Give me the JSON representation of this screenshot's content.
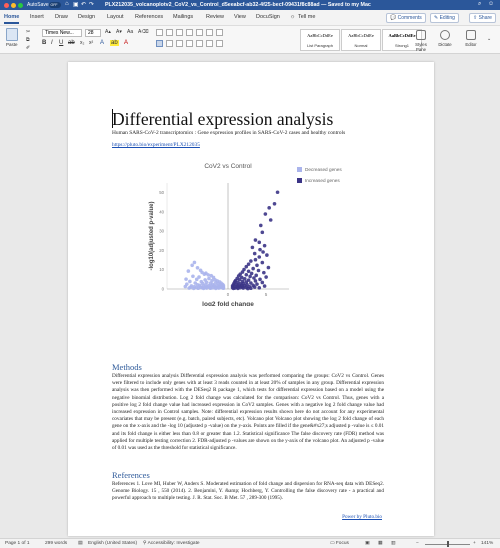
{
  "window": {
    "autosave_label": "AutoSave",
    "autosave_state": "OFF",
    "doc_title": "PLX212035_volcanoplotv2_CoV2_vs_Control_d5eeabcf-ab32-4f25-becf-09431f8c88ad — Saved to my Mac"
  },
  "ribbon_tabs": [
    "Home",
    "Insert",
    "Draw",
    "Design",
    "Layout",
    "References",
    "Mailings",
    "Review",
    "View",
    "DocuSign"
  ],
  "tell_me": "Tell me",
  "comments_label": "Comments",
  "editing_label": "Editing",
  "share_label": "Share",
  "ribbon": {
    "paste_label": "Paste",
    "font_name": "Times New...",
    "font_size": "28",
    "styles": [
      {
        "preview": "AaBbCcDdEe",
        "name": "List Paragraph"
      },
      {
        "preview": "AaBbCcDdEe",
        "name": "Normal"
      },
      {
        "preview": "AaBbCcDdEe",
        "name": "Strong1"
      }
    ],
    "styles_pane_label": "Styles Pane",
    "dictate_label": "Dictate",
    "editor_label": "Editor"
  },
  "document": {
    "title": "Differential expression analysis",
    "subtitle": "Human SARS-CoV-2 transcriptomics : Gene expression profiles in SARS-CoV-2 cases and healthy controls",
    "link": "https://pluto.bio/experiment/PLX212035",
    "methods_heading": "Methods",
    "methods_text": "Differential expression analysis   Differential expression analysis was performed comparing the groups:  CoV2 vs  Control. Genes were filtered to include only genes with at least 3 reads counted in at least 20% of samples in any group. Differential expression analysis was then performed with the DESeq2 R package 1, which tests for differential expression based on a model using the negative binomial distribution.  Log 2 fold change was calculated for the comparison:  CoV2  vs  Control. Thus, genes with a positive log 2 fold change value had increased expression in  CoV2  samples. Genes with a negative log 2 fold change value had increased expression in  Control  samples.  Note: differential expression results shown here do not account for any experimental covariates that may be present (e.g. batch, paired subjects, etc).   Volcano plot  Volcano plot showing the log 2  fold change of each gene on the x-axis and the  -log 10 (adjusted  p -value)  on the y-axis. Points are filled if the gene&#x27;s adjusted  p -value is ≤  0.01   and its fold change is either less than  0.8  or greater than  1.2.   Statistical significance  The false discovery rate (FDR) method was applied for multiple testing correction 2.  FDR-adjusted p -values  are shown on the y-axis of the volcano plot. An adjusted  p -value  of  0.01  was used as the threshold for statistical significance.",
    "references_heading": "References",
    "references_text": "References 1.  Love MI, Huber W, Anders S. Moderated estimation of fold change and dispersion for RNA-seq data with DESeq2.  Genome Biology.  15 , 550 (2014).  2.  Benjamini, Y. &amp; Hochberg, Y. Controlling the false discovery rate - a practical and powerful approach to multiple testing.  J. R. Stat. Soc. B Met.  57 , 289-300 (1995).",
    "powered_by": "Power by Pluto.bio"
  },
  "chart_data": {
    "type": "scatter",
    "title": "CoV2 vs Control",
    "xlabel": "log2 fold change",
    "ylabel": "-log10(adjusted p-value)",
    "xticks": [
      0,
      5
    ],
    "yticks": [
      0,
      10,
      20,
      30,
      40,
      50
    ],
    "xlim": [
      -8,
      8
    ],
    "ylim": [
      0,
      55
    ],
    "legend_position": "top-right",
    "series": [
      {
        "name": "Decreased genes",
        "color": "#aab4ec",
        "points": [
          [
            -4.4,
            13.8
          ],
          [
            -4.7,
            12.3
          ],
          [
            -4.0,
            11.0
          ],
          [
            -3.6,
            9.7
          ],
          [
            -5.2,
            9.3
          ],
          [
            -3.4,
            8.6
          ],
          [
            -2.9,
            8.2
          ],
          [
            -3.1,
            7.7
          ],
          [
            -2.6,
            7.3
          ],
          [
            -2.2,
            6.9
          ],
          [
            -4.6,
            6.6
          ],
          [
            -3.8,
            6.2
          ],
          [
            -1.9,
            6.0
          ],
          [
            -2.5,
            5.4
          ],
          [
            -5.5,
            5.1
          ],
          [
            -4.1,
            5.0
          ],
          [
            -1.7,
            4.8
          ],
          [
            -3.0,
            4.7
          ],
          [
            -2.1,
            4.3
          ],
          [
            -1.4,
            4.2
          ],
          [
            -5.0,
            3.9
          ],
          [
            -3.5,
            3.8
          ],
          [
            -1.1,
            3.7
          ],
          [
            -2.8,
            3.5
          ],
          [
            -1.6,
            3.3
          ],
          [
            -4.3,
            3.1
          ],
          [
            -0.9,
            3.0
          ],
          [
            -2.3,
            3.0
          ],
          [
            -3.3,
            2.8
          ],
          [
            -1.3,
            2.7
          ],
          [
            -5.4,
            2.5
          ],
          [
            -0.7,
            2.4
          ],
          [
            -2.0,
            2.4
          ],
          [
            -4.0,
            2.2
          ],
          [
            -2.9,
            2.1
          ],
          [
            -1.0,
            2.1
          ],
          [
            -3.7,
            1.9
          ],
          [
            -1.8,
            1.8
          ],
          [
            -0.6,
            1.8
          ],
          [
            -2.5,
            1.7
          ],
          [
            -4.8,
            1.6
          ],
          [
            -1.4,
            1.6
          ],
          [
            -3.2,
            1.5
          ],
          [
            -0.8,
            1.4
          ],
          [
            -2.2,
            1.4
          ],
          [
            -5.6,
            1.3
          ],
          [
            -4.4,
            1.2
          ],
          [
            -1.1,
            1.2
          ],
          [
            -2.7,
            1.1
          ],
          [
            -3.6,
            1.0
          ],
          [
            -0.6,
            1.0
          ],
          [
            -1.7,
            1.0
          ],
          [
            -4.9,
            0.9
          ],
          [
            -2.4,
            0.9
          ],
          [
            -3.0,
            0.8
          ],
          [
            -0.9,
            0.8
          ],
          [
            -4.1,
            0.7
          ],
          [
            -1.4,
            0.7
          ],
          [
            -2.0,
            0.6
          ],
          [
            -3.4,
            0.6
          ],
          [
            -0.7,
            0.6
          ],
          [
            -5.1,
            0.5
          ],
          [
            -2.8,
            0.5
          ],
          [
            -1.2,
            0.5
          ],
          [
            -3.9,
            0.4
          ],
          [
            -0.6,
            0.4
          ],
          [
            -2.3,
            0.4
          ],
          [
            -4.5,
            0.3
          ],
          [
            -1.6,
            0.3
          ],
          [
            -3.2,
            0.3
          ]
        ]
      },
      {
        "name": "Increased genes",
        "color": "#3b3486",
        "points": [
          [
            6.5,
            50.2
          ],
          [
            6.1,
            44.2
          ],
          [
            5.4,
            42.1
          ],
          [
            4.9,
            38.9
          ],
          [
            5.6,
            35.8
          ],
          [
            4.3,
            33.0
          ],
          [
            4.5,
            29.4
          ],
          [
            3.6,
            25.4
          ],
          [
            4.1,
            24.2
          ],
          [
            4.8,
            22.5
          ],
          [
            3.2,
            21.6
          ],
          [
            4.2,
            20.4
          ],
          [
            4.6,
            19.2
          ],
          [
            3.5,
            18.4
          ],
          [
            5.1,
            17.6
          ],
          [
            4.1,
            16.6
          ],
          [
            3.6,
            15.2
          ],
          [
            3.0,
            14.5
          ],
          [
            4.5,
            13.7
          ],
          [
            2.7,
            12.9
          ],
          [
            3.8,
            12.3
          ],
          [
            2.4,
            11.6
          ],
          [
            5.3,
            11.1
          ],
          [
            3.3,
            10.6
          ],
          [
            2.1,
            10.1
          ],
          [
            4.0,
            9.6
          ],
          [
            2.7,
            9.2
          ],
          [
            1.9,
            8.8
          ],
          [
            4.7,
            8.5
          ],
          [
            3.1,
            8.1
          ],
          [
            1.6,
            7.7
          ],
          [
            2.4,
            7.4
          ],
          [
            3.7,
            7.1
          ],
          [
            1.4,
            6.8
          ],
          [
            2.9,
            6.5
          ],
          [
            5.0,
            6.2
          ],
          [
            1.8,
            6.0
          ],
          [
            3.4,
            5.7
          ],
          [
            1.2,
            5.5
          ],
          [
            2.2,
            5.3
          ],
          [
            4.2,
            5.0
          ],
          [
            1.5,
            4.8
          ],
          [
            2.7,
            4.6
          ],
          [
            1.0,
            4.4
          ],
          [
            3.6,
            4.2
          ],
          [
            1.9,
            4.0
          ],
          [
            0.9,
            3.8
          ],
          [
            2.4,
            3.6
          ],
          [
            4.5,
            3.4
          ],
          [
            1.3,
            3.3
          ],
          [
            3.0,
            3.1
          ],
          [
            0.8,
            3.0
          ],
          [
            2.0,
            2.8
          ],
          [
            1.6,
            2.7
          ],
          [
            3.8,
            2.5
          ],
          [
            1.1,
            2.4
          ],
          [
            2.5,
            2.3
          ],
          [
            0.7,
            2.2
          ],
          [
            1.8,
            2.0
          ],
          [
            3.3,
            1.9
          ],
          [
            1.3,
            1.8
          ],
          [
            2.2,
            1.7
          ],
          [
            0.6,
            1.6
          ],
          [
            4.8,
            1.5
          ],
          [
            1.5,
            1.4
          ],
          [
            2.8,
            1.3
          ],
          [
            0.9,
            1.2
          ],
          [
            1.9,
            1.1
          ],
          [
            3.5,
            1.0
          ],
          [
            1.2,
            0.9
          ],
          [
            0.6,
            0.8
          ],
          [
            2.4,
            0.8
          ],
          [
            1.6,
            0.7
          ],
          [
            4.1,
            0.6
          ],
          [
            0.9,
            0.5
          ],
          [
            2.0,
            0.5
          ],
          [
            3.0,
            0.4
          ],
          [
            1.3,
            0.3
          ],
          [
            0.7,
            0.3
          ],
          [
            2.6,
            0.2
          ]
        ]
      }
    ]
  }
}
